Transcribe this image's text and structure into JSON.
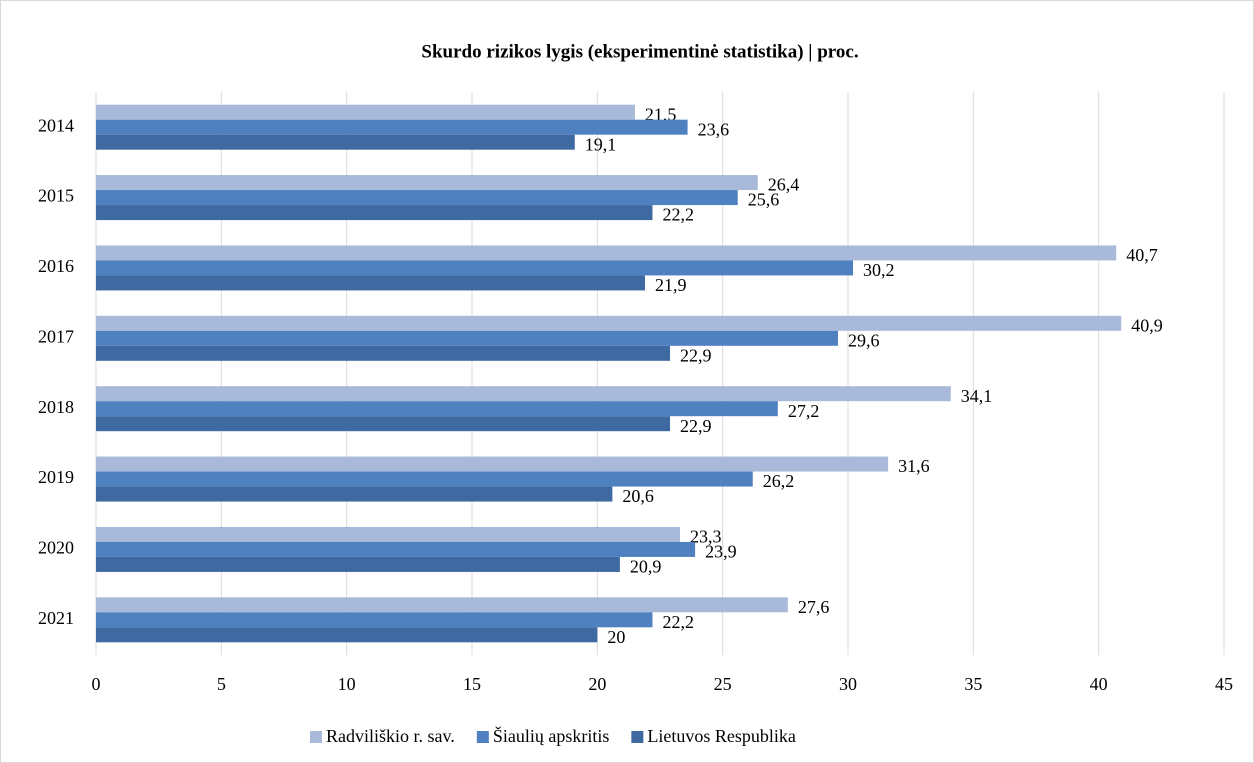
{
  "chart_data": {
    "type": "hbar",
    "title": "Skurdo rizikos lygis (eksperimentinė statistika) | proc.",
    "categories": [
      "2014",
      "2015",
      "2016",
      "2017",
      "2018",
      "2019",
      "2020",
      "2021"
    ],
    "series": [
      {
        "name": "Radviliškio r. sav.",
        "color": "#a9b9da",
        "values": [
          21.5,
          26.4,
          40.7,
          40.9,
          34.1,
          31.6,
          23.3,
          27.6
        ],
        "value_labels": [
          "21,5",
          "26,4",
          "40,7",
          "40,9",
          "34,1",
          "31,6",
          "23,3",
          "27,6"
        ]
      },
      {
        "name": "Šiaulių apskritis",
        "color": "#4f81c1",
        "values": [
          23.6,
          25.6,
          30.2,
          29.6,
          27.2,
          26.2,
          23.9,
          22.2
        ],
        "value_labels": [
          "23,6",
          "25,6",
          "30,2",
          "29,6",
          "27,2",
          "26,2",
          "23,9",
          "22,2"
        ]
      },
      {
        "name": "Lietuvos Respublika",
        "color": "#3f6aa1",
        "values": [
          19.1,
          22.2,
          21.9,
          22.9,
          22.9,
          20.6,
          20.9,
          20
        ],
        "value_labels": [
          "19,1",
          "22,2",
          "21,9",
          "22,9",
          "22,9",
          "20,6",
          "20,9",
          "20"
        ]
      }
    ],
    "xlim": [
      0,
      45
    ],
    "xticks": [
      0,
      5,
      10,
      15,
      20,
      25,
      30,
      35,
      40,
      45
    ],
    "grid": true,
    "legend": "bottom"
  }
}
